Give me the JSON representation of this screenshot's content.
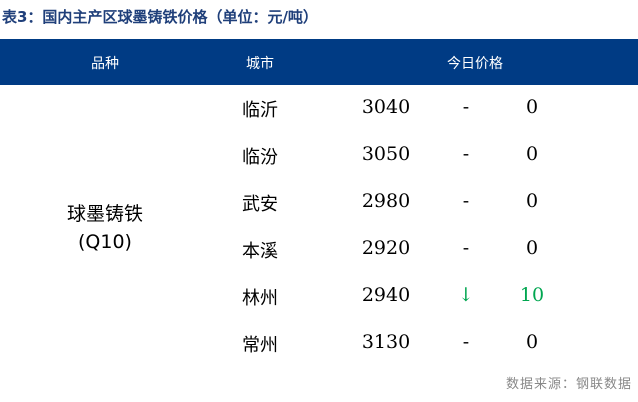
{
  "title": "表3：国内主产区球墨铸铁价格（单位：元/吨）",
  "headers": [
    "品种",
    "城市",
    "今日价格"
  ],
  "product": {
    "name": "球墨铸铁",
    "grade": "(Q10)"
  },
  "rows": [
    {
      "city": "临沂",
      "price": "3040",
      "trend": "-",
      "change": "0"
    },
    {
      "city": "临汾",
      "price": "3050",
      "trend": "-",
      "change": "0"
    },
    {
      "city": "武安",
      "price": "2980",
      "trend": "-",
      "change": "0"
    },
    {
      "city": "本溪",
      "price": "2920",
      "trend": "-",
      "change": "0"
    },
    {
      "city": "林州",
      "price": "2940",
      "trend": "↓",
      "change": "10",
      "color": "#00a650"
    },
    {
      "city": "常州",
      "price": "3130",
      "trend": "-",
      "change": "0"
    }
  ],
  "source": "数据来源：钢联数据",
  "colors": {
    "header_bg": "#003b84",
    "down": "#00a650"
  }
}
